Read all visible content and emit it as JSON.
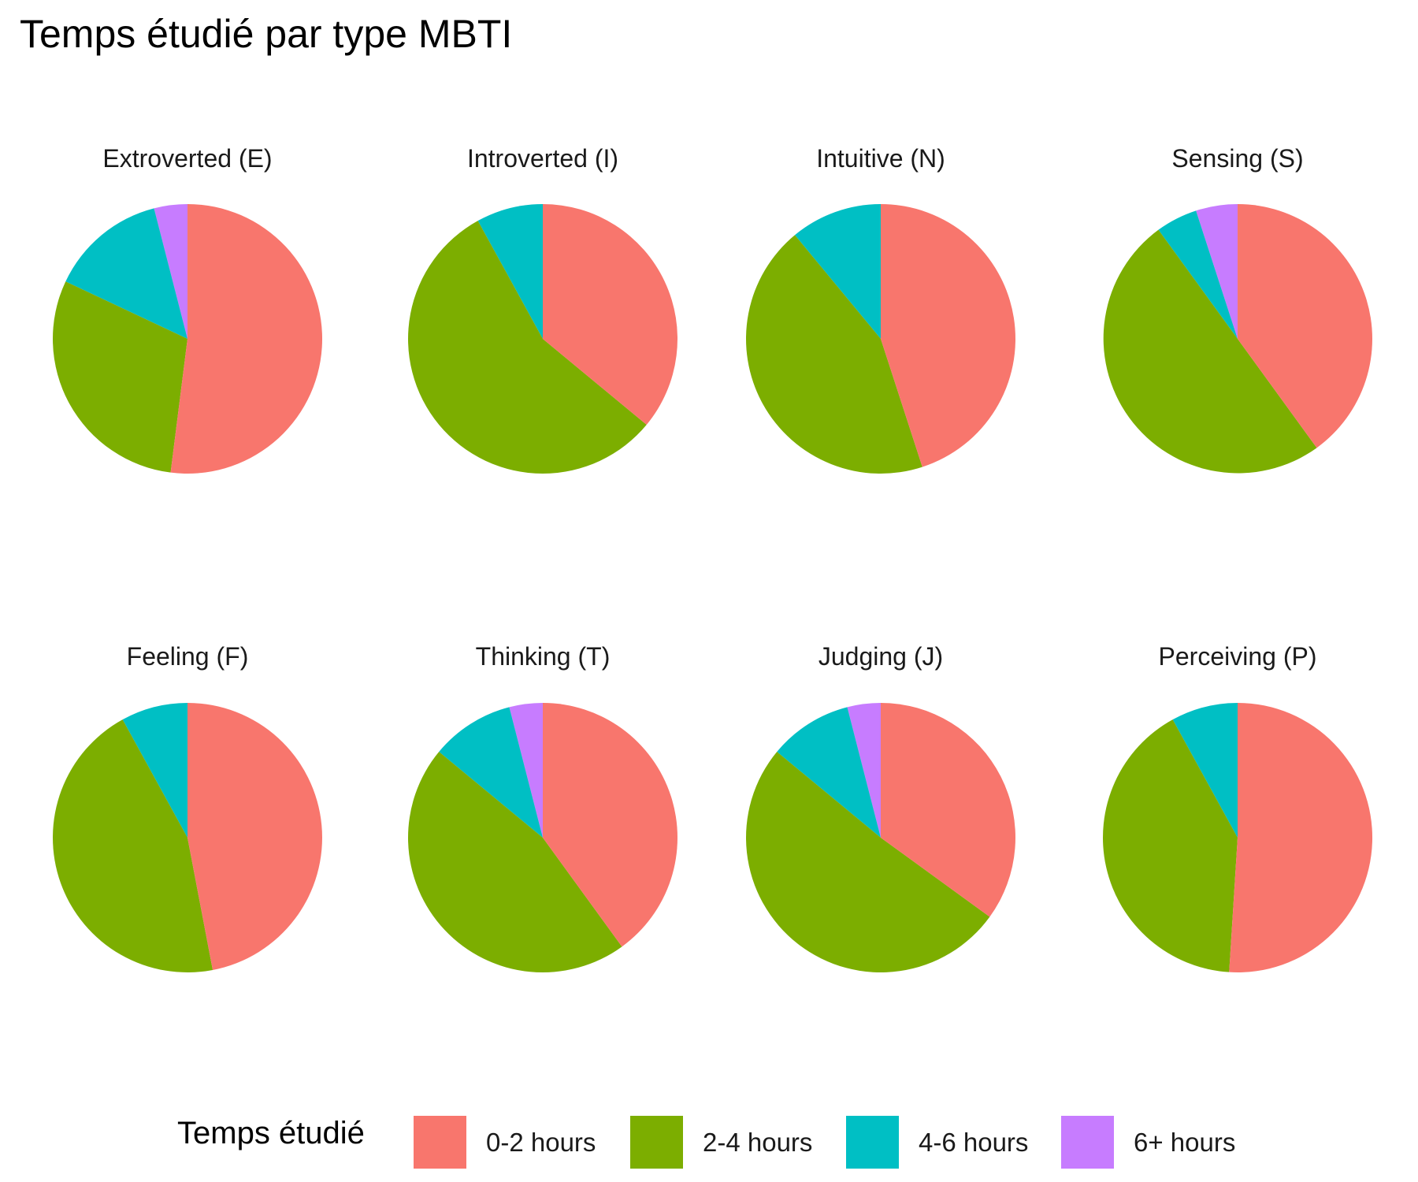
{
  "chart_data": {
    "type": "pie",
    "title": "Temps étudié par type MBTI",
    "legend": {
      "title": "Temps étudié",
      "position": "bottom",
      "items": [
        {
          "label": "0-2 hours",
          "color": "#F8766D"
        },
        {
          "label": "2-4 hours",
          "color": "#7CAE00"
        },
        {
          "label": "4-6 hours",
          "color": "#00BFC4"
        },
        {
          "label": "6+ hours",
          "color": "#C77CFF"
        }
      ]
    },
    "panels": [
      {
        "label": "Extroverted (E)",
        "values": {
          "0-2 hours": 52,
          "2-4 hours": 30,
          "4-6 hours": 14,
          "6+ hours": 4
        }
      },
      {
        "label": "Introverted (I)",
        "values": {
          "0-2 hours": 36,
          "2-4 hours": 56,
          "4-6 hours": 8,
          "6+ hours": 0
        }
      },
      {
        "label": "Intuitive (N)",
        "values": {
          "0-2 hours": 45,
          "2-4 hours": 44,
          "4-6 hours": 11,
          "6+ hours": 0
        }
      },
      {
        "label": "Sensing (S)",
        "values": {
          "0-2 hours": 40,
          "2-4 hours": 50,
          "4-6 hours": 5,
          "6+ hours": 5
        }
      },
      {
        "label": "Feeling (F)",
        "values": {
          "0-2 hours": 47,
          "2-4 hours": 45,
          "4-6 hours": 8,
          "6+ hours": 0
        }
      },
      {
        "label": "Thinking (T)",
        "values": {
          "0-2 hours": 40,
          "2-4 hours": 46,
          "4-6 hours": 10,
          "6+ hours": 4
        }
      },
      {
        "label": "Judging (J)",
        "values": {
          "0-2 hours": 35,
          "2-4 hours": 51,
          "4-6 hours": 10,
          "6+ hours": 4
        }
      },
      {
        "label": "Perceiving (P)",
        "values": {
          "0-2 hours": 51,
          "2-4 hours": 41,
          "4-6 hours": 8,
          "6+ hours": 0
        }
      }
    ]
  }
}
